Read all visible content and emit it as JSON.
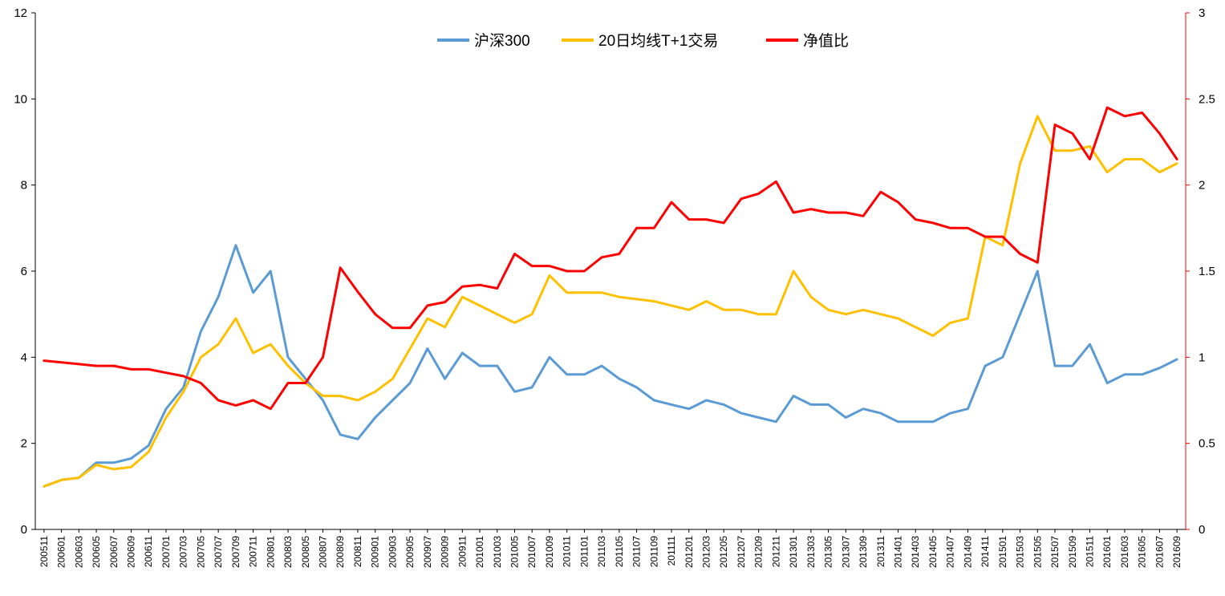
{
  "chart_data": {
    "type": "line",
    "title": "",
    "xlabel": "",
    "ylabel": "",
    "y_left_lim": [
      0,
      12
    ],
    "y_left_ticks": [
      "0",
      "2",
      "4",
      "6",
      "8",
      "10",
      "12"
    ],
    "y_right_lim": [
      0,
      3
    ],
    "y_right_ticks": [
      "0",
      "0.5",
      "1",
      "1.5",
      "2",
      "2.5",
      "3"
    ],
    "grid": false,
    "legend_position": "top-center",
    "x_tick_labels": [
      "200511",
      "200601",
      "200603",
      "200605",
      "200607",
      "200609",
      "200611",
      "200701",
      "200703",
      "200705",
      "200707",
      "200709",
      "200711",
      "200801",
      "200803",
      "200805",
      "200807",
      "200809",
      "200811",
      "200901",
      "200903",
      "200905",
      "200907",
      "200909",
      "200911",
      "201001",
      "201003",
      "201005",
      "201007",
      "201009",
      "201011",
      "201101",
      "201103",
      "201105",
      "201107",
      "201109",
      "201111",
      "201201",
      "201203",
      "201205",
      "201207",
      "201209",
      "201211",
      "201301",
      "201303",
      "201305",
      "201307",
      "201309",
      "201311",
      "201401",
      "201403",
      "201405",
      "201407",
      "201409",
      "201411",
      "201501",
      "201503",
      "201505",
      "201507",
      "201509",
      "201511",
      "201601",
      "201603",
      "201605",
      "201607",
      "201609"
    ],
    "series": [
      {
        "name": "沪深300",
        "axis": "left",
        "color": "#5B9BD5",
        "values": [
          1.0,
          1.15,
          1.2,
          1.55,
          1.55,
          1.65,
          1.95,
          2.8,
          3.3,
          4.6,
          5.4,
          6.6,
          5.5,
          6.0,
          4.0,
          3.5,
          3.0,
          2.2,
          2.1,
          2.6,
          3.0,
          3.4,
          4.2,
          3.5,
          4.1,
          3.8,
          3.8,
          3.2,
          3.3,
          4.0,
          3.6,
          3.6,
          3.8,
          3.5,
          3.3,
          3.0,
          2.9,
          2.8,
          3.0,
          2.9,
          2.7,
          2.6,
          2.5,
          3.1,
          2.9,
          2.9,
          2.6,
          2.8,
          2.7,
          2.5,
          2.5,
          2.5,
          2.7,
          2.8,
          3.8,
          4.0,
          5.0,
          6.0,
          3.8,
          3.8,
          4.3,
          3.4,
          3.6,
          3.6,
          3.75,
          3.95
        ]
      },
      {
        "name": "20日均线T+1交易",
        "axis": "left",
        "color": "#FFC000",
        "values": [
          1.0,
          1.15,
          1.2,
          1.5,
          1.4,
          1.45,
          1.8,
          2.6,
          3.2,
          4.0,
          4.3,
          4.9,
          4.1,
          4.3,
          3.8,
          3.4,
          3.1,
          3.1,
          3.0,
          3.2,
          3.5,
          4.2,
          4.9,
          4.7,
          5.4,
          5.2,
          5.0,
          4.8,
          5.0,
          5.9,
          5.5,
          5.5,
          5.5,
          5.4,
          5.35,
          5.3,
          5.2,
          5.1,
          5.3,
          5.1,
          5.1,
          5.0,
          5.0,
          6.0,
          5.4,
          5.1,
          5.0,
          5.1,
          5.0,
          4.9,
          4.7,
          4.5,
          4.8,
          4.9,
          6.8,
          6.6,
          8.5,
          9.6,
          8.8,
          8.8,
          8.9,
          8.3,
          8.6,
          8.6,
          8.3,
          8.5
        ]
      },
      {
        "name": "净值比",
        "axis": "right",
        "color": "#FF0000",
        "values": [
          0.98,
          0.97,
          0.96,
          0.95,
          0.95,
          0.93,
          0.93,
          0.91,
          0.89,
          0.85,
          0.75,
          0.72,
          0.75,
          0.7,
          0.85,
          0.85,
          1.0,
          1.52,
          1.38,
          1.25,
          1.17,
          1.17,
          1.3,
          1.32,
          1.41,
          1.42,
          1.4,
          1.6,
          1.53,
          1.53,
          1.5,
          1.5,
          1.58,
          1.6,
          1.75,
          1.75,
          1.9,
          1.8,
          1.8,
          1.78,
          1.92,
          1.95,
          2.02,
          1.84,
          1.86,
          1.84,
          1.84,
          1.82,
          1.96,
          1.9,
          1.8,
          1.78,
          1.75,
          1.75,
          1.7,
          1.7,
          1.6,
          1.55,
          2.35,
          2.3,
          2.15,
          2.45,
          2.4,
          2.42,
          2.3,
          2.15
        ]
      }
    ]
  }
}
